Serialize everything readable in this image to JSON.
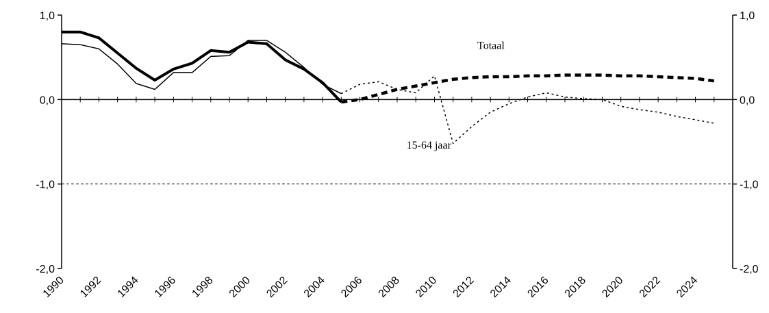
{
  "chart_data": {
    "type": "line",
    "title": "",
    "xlabel": "",
    "ylabel": "",
    "xlim": [
      1990,
      2026
    ],
    "ylim": [
      -2.0,
      1.0
    ],
    "y_ticks": [
      1.0,
      0.0,
      -1.0,
      -2.0
    ],
    "y_tick_labels": [
      "1,0",
      "0,0",
      "-1,0",
      "-2,0"
    ],
    "x_tick_labels": [
      "1990",
      "1992",
      "1994",
      "1996",
      "1998",
      "2000",
      "2002",
      "2004",
      "2006",
      "2008",
      "2010",
      "2012",
      "2014",
      "2016",
      "2018",
      "2020",
      "2022",
      "2024"
    ],
    "x_tick_values": [
      1990,
      1992,
      1994,
      1996,
      1998,
      2000,
      2002,
      2004,
      2006,
      2008,
      2010,
      2012,
      2014,
      2016,
      2018,
      2020,
      2022,
      2024
    ],
    "gridlines": [
      -1.0
    ],
    "annotations": [
      {
        "text": "Totaal",
        "x": 2012.3,
        "y": 0.6
      },
      {
        "text": "15-64 jaar",
        "x": 2008.5,
        "y": -0.58
      }
    ],
    "series": [
      {
        "id": "totaal",
        "style": "thick-solid",
        "color": "#000000",
        "x": [
          1990,
          1991,
          1992,
          1993,
          1994,
          1995,
          1996,
          1997,
          1998,
          1999,
          2000,
          2001,
          2002,
          2003,
          2004,
          2005
        ],
        "y": [
          0.8,
          0.8,
          0.73,
          0.55,
          0.37,
          0.23,
          0.36,
          0.43,
          0.58,
          0.56,
          0.68,
          0.66,
          0.47,
          0.36,
          0.2,
          -0.03
        ]
      },
      {
        "id": "totaal-projection",
        "style": "thick-dashed",
        "color": "#000000",
        "x": [
          2005,
          2006,
          2007,
          2008,
          2009,
          2010,
          2011,
          2012,
          2013,
          2014,
          2015,
          2016,
          2017,
          2018,
          2019,
          2020,
          2021,
          2022,
          2023,
          2024,
          2025
        ],
        "y": [
          -0.03,
          0.0,
          0.06,
          0.12,
          0.16,
          0.2,
          0.24,
          0.26,
          0.27,
          0.27,
          0.28,
          0.28,
          0.29,
          0.29,
          0.29,
          0.28,
          0.28,
          0.27,
          0.26,
          0.25,
          0.22
        ]
      },
      {
        "id": "15-64-jaar",
        "style": "thin-solid",
        "color": "#000000",
        "x": [
          1990,
          1991,
          1992,
          1993,
          1994,
          1995,
          1996,
          1997,
          1998,
          1999,
          2000,
          2001,
          2002,
          2003,
          2004,
          2005
        ],
        "y": [
          0.66,
          0.65,
          0.6,
          0.42,
          0.19,
          0.12,
          0.32,
          0.32,
          0.51,
          0.52,
          0.7,
          0.7,
          0.56,
          0.38,
          0.18,
          0.07
        ]
      },
      {
        "id": "15-64-jaar-projection",
        "style": "thin-dotted",
        "color": "#000000",
        "x": [
          2005,
          2006,
          2007,
          2008,
          2009,
          2010,
          2011,
          2012,
          2013,
          2014,
          2015,
          2016,
          2017,
          2018,
          2019,
          2020,
          2021,
          2022,
          2023,
          2024,
          2025
        ],
        "y": [
          0.07,
          0.18,
          0.21,
          0.12,
          0.08,
          0.28,
          -0.52,
          -0.32,
          -0.15,
          -0.05,
          0.03,
          0.08,
          0.03,
          0.01,
          0.0,
          -0.08,
          -0.12,
          -0.15,
          -0.2,
          -0.24,
          -0.28
        ]
      }
    ]
  }
}
